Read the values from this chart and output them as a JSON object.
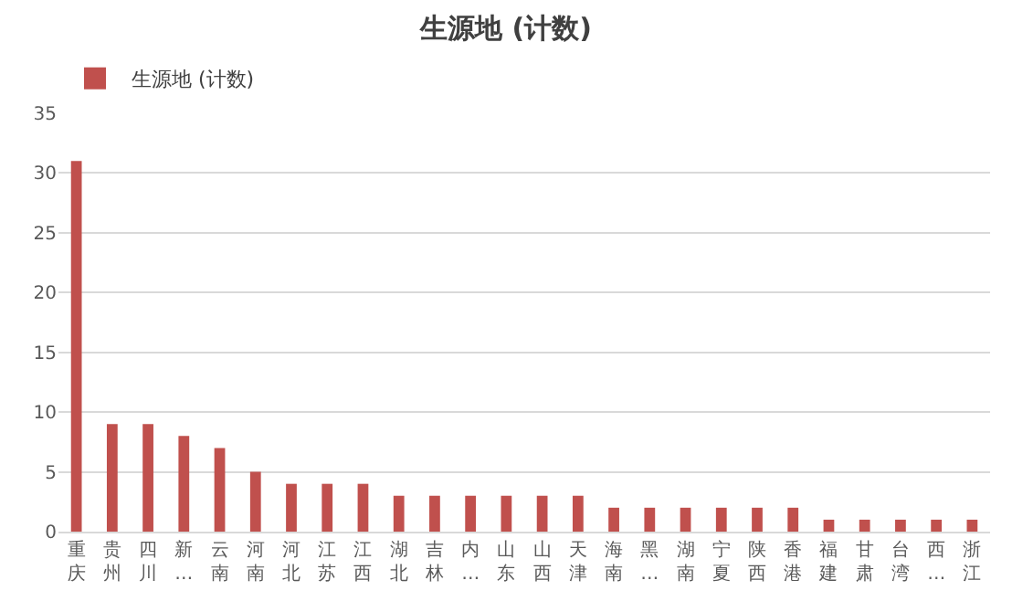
{
  "chart_data": {
    "type": "bar",
    "title": "生源地 (计数)",
    "categories": [
      "重庆",
      "贵州",
      "四川",
      "新…",
      "云南",
      "河南",
      "河北",
      "江苏",
      "江西",
      "湖北",
      "吉林",
      "内…",
      "山东",
      "山西",
      "天津",
      "海南",
      "黑…",
      "湖南",
      "宁夏",
      "陕西",
      "香港",
      "福建",
      "甘肃",
      "台湾",
      "西…",
      "浙江"
    ],
    "series": [
      {
        "name": "生源地 (计数)",
        "color": "#c0504d",
        "values": [
          31,
          9,
          9,
          8,
          7,
          5,
          4,
          4,
          4,
          3,
          3,
          3,
          3,
          3,
          3,
          2,
          2,
          2,
          2,
          2,
          2,
          1,
          1,
          1,
          1,
          1
        ]
      }
    ],
    "ylim": [
      0,
      35
    ],
    "yticks": [
      0,
      5,
      10,
      15,
      20,
      25,
      30,
      35
    ],
    "grid": "y",
    "legend": "top left"
  }
}
